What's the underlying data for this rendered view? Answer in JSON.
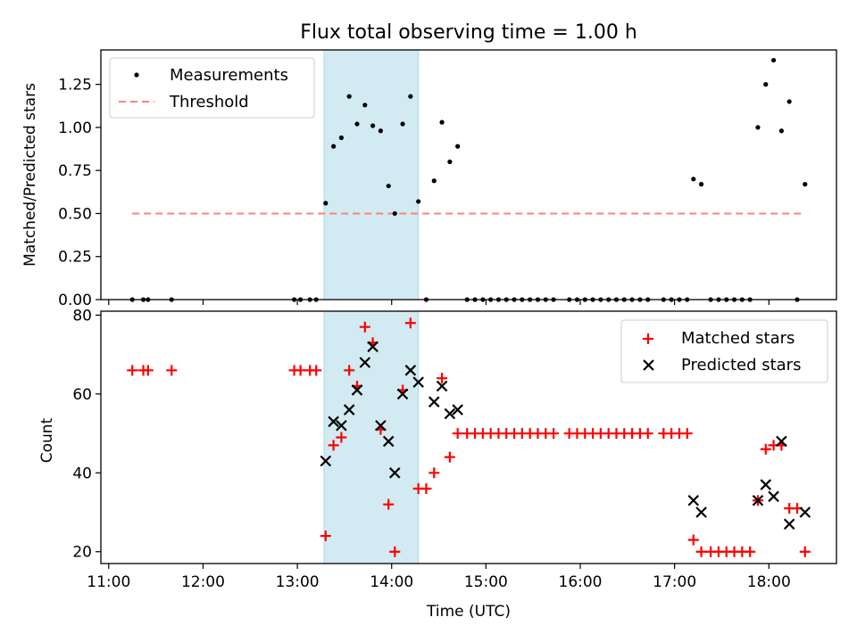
{
  "chart_data": [
    {
      "type": "scatter",
      "title": "Flux total observing time = 1.00 h",
      "ylabel": "Matched/Predicted stars",
      "xlabel": "",
      "ylim": [
        0,
        1.45
      ],
      "yticks": [
        "0.00",
        "0.25",
        "0.50",
        "0.75",
        "1.00",
        "1.25"
      ],
      "ytick_values": [
        0,
        0.25,
        0.5,
        0.75,
        1.0,
        1.25
      ],
      "shaded_span": [
        "13:17",
        "14:17"
      ],
      "shade_color": "#add8e6",
      "legend": {
        "position": "top-left",
        "entries": [
          "Measurements",
          "Threshold"
        ]
      },
      "threshold": {
        "name": "Threshold",
        "value": 0.5,
        "x_range": [
          "11:15",
          "18:23"
        ],
        "color": "#ff8080"
      },
      "series": [
        {
          "name": "Measurements",
          "color": "#000000",
          "points": [
            [
              "11:15",
              0
            ],
            [
              "11:22",
              0
            ],
            [
              "11:25",
              0
            ],
            [
              "11:40",
              0
            ],
            [
              "12:58",
              0
            ],
            [
              "13:02",
              0
            ],
            [
              "13:08",
              0
            ],
            [
              "13:12",
              0
            ],
            [
              "13:18",
              0.56
            ],
            [
              "13:23",
              0.89
            ],
            [
              "13:28",
              0.94
            ],
            [
              "13:33",
              1.18
            ],
            [
              "13:38",
              1.02
            ],
            [
              "13:43",
              1.13
            ],
            [
              "13:48",
              1.01
            ],
            [
              "13:53",
              0.98
            ],
            [
              "13:58",
              0.66
            ],
            [
              "14:02",
              0.5
            ],
            [
              "14:07",
              1.02
            ],
            [
              "14:12",
              1.18
            ],
            [
              "14:17",
              0.57
            ],
            [
              "14:22",
              0
            ],
            [
              "14:27",
              0.69
            ],
            [
              "14:32",
              1.03
            ],
            [
              "14:37",
              0.8
            ],
            [
              "14:42",
              0.89
            ],
            [
              "14:48",
              0
            ],
            [
              "14:53",
              0
            ],
            [
              "14:58",
              0
            ],
            [
              "15:03",
              0
            ],
            [
              "15:08",
              0
            ],
            [
              "15:13",
              0
            ],
            [
              "15:18",
              0
            ],
            [
              "15:23",
              0
            ],
            [
              "15:28",
              0
            ],
            [
              "15:33",
              0
            ],
            [
              "15:38",
              0
            ],
            [
              "15:43",
              0
            ],
            [
              "15:53",
              0
            ],
            [
              "15:58",
              0
            ],
            [
              "16:03",
              0
            ],
            [
              "16:08",
              0
            ],
            [
              "16:13",
              0
            ],
            [
              "16:18",
              0
            ],
            [
              "16:23",
              0
            ],
            [
              "16:28",
              0
            ],
            [
              "16:33",
              0
            ],
            [
              "16:38",
              0
            ],
            [
              "16:43",
              0
            ],
            [
              "16:53",
              0
            ],
            [
              "16:58",
              0
            ],
            [
              "17:03",
              0
            ],
            [
              "17:08",
              0
            ],
            [
              "17:12",
              0.7
            ],
            [
              "17:17",
              0.67
            ],
            [
              "17:23",
              0
            ],
            [
              "17:28",
              0
            ],
            [
              "17:33",
              0
            ],
            [
              "17:38",
              0
            ],
            [
              "17:43",
              0
            ],
            [
              "17:48",
              0
            ],
            [
              "17:53",
              1.0
            ],
            [
              "17:58",
              1.25
            ],
            [
              "18:03",
              1.39
            ],
            [
              "18:08",
              0.98
            ],
            [
              "18:13",
              1.15
            ],
            [
              "18:18",
              0
            ],
            [
              "18:23",
              0.67
            ]
          ]
        }
      ]
    },
    {
      "type": "scatter",
      "title": "",
      "ylabel": "Count",
      "xlabel": "Time (UTC)",
      "ylim": [
        17,
        81
      ],
      "yticks": [
        "20",
        "40",
        "60",
        "80"
      ],
      "ytick_values": [
        20,
        40,
        60,
        80
      ],
      "xlim": [
        "10:55",
        "18:43"
      ],
      "xticks": [
        "11:00",
        "12:00",
        "13:00",
        "14:00",
        "15:00",
        "16:00",
        "17:00",
        "18:00"
      ],
      "shaded_span": [
        "13:17",
        "14:17"
      ],
      "shade_color": "#add8e6",
      "legend": {
        "position": "top-right",
        "entries": [
          "Matched stars",
          "Predicted stars"
        ]
      },
      "series": [
        {
          "name": "Matched stars",
          "marker": "plus",
          "color": "#ff0000",
          "points": [
            [
              "11:15",
              66
            ],
            [
              "11:22",
              66
            ],
            [
              "11:25",
              66
            ],
            [
              "11:40",
              66
            ],
            [
              "12:58",
              66
            ],
            [
              "13:02",
              66
            ],
            [
              "13:08",
              66
            ],
            [
              "13:12",
              66
            ],
            [
              "13:18",
              24
            ],
            [
              "13:23",
              47
            ],
            [
              "13:28",
              49
            ],
            [
              "13:33",
              66
            ],
            [
              "13:38",
              62
            ],
            [
              "13:43",
              77
            ],
            [
              "13:48",
              73
            ],
            [
              "13:53",
              51
            ],
            [
              "13:58",
              32
            ],
            [
              "14:02",
              20
            ],
            [
              "14:07",
              61
            ],
            [
              "14:12",
              78
            ],
            [
              "14:17",
              36
            ],
            [
              "14:22",
              36
            ],
            [
              "14:27",
              40
            ],
            [
              "14:32",
              64
            ],
            [
              "14:37",
              44
            ],
            [
              "14:42",
              50
            ],
            [
              "14:48",
              50
            ],
            [
              "14:53",
              50
            ],
            [
              "14:58",
              50
            ],
            [
              "15:03",
              50
            ],
            [
              "15:08",
              50
            ],
            [
              "15:13",
              50
            ],
            [
              "15:18",
              50
            ],
            [
              "15:23",
              50
            ],
            [
              "15:28",
              50
            ],
            [
              "15:33",
              50
            ],
            [
              "15:38",
              50
            ],
            [
              "15:43",
              50
            ],
            [
              "15:53",
              50
            ],
            [
              "15:58",
              50
            ],
            [
              "16:03",
              50
            ],
            [
              "16:08",
              50
            ],
            [
              "16:13",
              50
            ],
            [
              "16:18",
              50
            ],
            [
              "16:23",
              50
            ],
            [
              "16:28",
              50
            ],
            [
              "16:33",
              50
            ],
            [
              "16:38",
              50
            ],
            [
              "16:43",
              50
            ],
            [
              "16:53",
              50
            ],
            [
              "16:58",
              50
            ],
            [
              "17:03",
              50
            ],
            [
              "17:08",
              50
            ],
            [
              "17:12",
              23
            ],
            [
              "17:17",
              20
            ],
            [
              "17:23",
              20
            ],
            [
              "17:28",
              20
            ],
            [
              "17:33",
              20
            ],
            [
              "17:38",
              20
            ],
            [
              "17:43",
              20
            ],
            [
              "17:48",
              20
            ],
            [
              "17:53",
              33
            ],
            [
              "17:58",
              46
            ],
            [
              "18:03",
              47
            ],
            [
              "18:08",
              47
            ],
            [
              "18:13",
              31
            ],
            [
              "18:18",
              31
            ],
            [
              "18:23",
              20
            ]
          ]
        },
        {
          "name": "Predicted stars",
          "marker": "x",
          "color": "#000000",
          "points": [
            [
              "13:18",
              43
            ],
            [
              "13:23",
              53
            ],
            [
              "13:28",
              52
            ],
            [
              "13:33",
              56
            ],
            [
              "13:38",
              61
            ],
            [
              "13:43",
              68
            ],
            [
              "13:48",
              72
            ],
            [
              "13:53",
              52
            ],
            [
              "13:58",
              48
            ],
            [
              "14:02",
              40
            ],
            [
              "14:07",
              60
            ],
            [
              "14:12",
              66
            ],
            [
              "14:17",
              63
            ],
            [
              "14:27",
              58
            ],
            [
              "14:32",
              62
            ],
            [
              "14:37",
              55
            ],
            [
              "14:42",
              56
            ],
            [
              "17:12",
              33
            ],
            [
              "17:17",
              30
            ],
            [
              "17:53",
              33
            ],
            [
              "17:58",
              37
            ],
            [
              "18:03",
              34
            ],
            [
              "18:08",
              48
            ],
            [
              "18:13",
              27
            ],
            [
              "18:23",
              30
            ]
          ]
        }
      ]
    }
  ]
}
